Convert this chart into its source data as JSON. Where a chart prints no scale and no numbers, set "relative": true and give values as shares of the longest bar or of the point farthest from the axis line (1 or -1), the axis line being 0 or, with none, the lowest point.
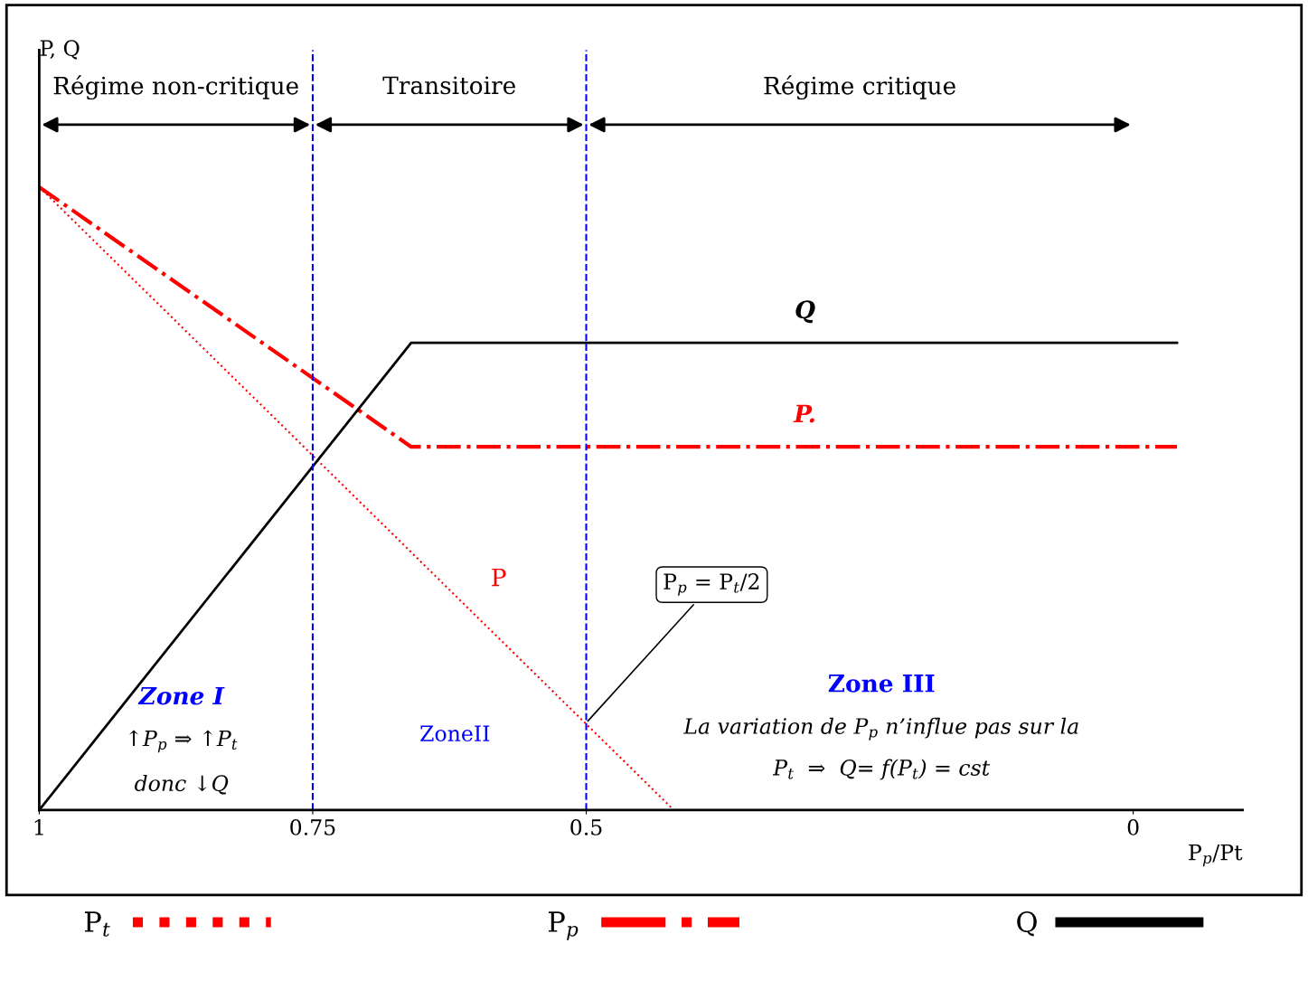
{
  "chart_data": {
    "type": "line",
    "relative": true,
    "xlabel": "P$_{p}$/Pt",
    "x": [
      1,
      0.66,
      -0.04
    ],
    "xlim": [
      1,
      -0.1
    ],
    "xticks": [
      1,
      0.75,
      0.5,
      0
    ],
    "tick_labels": "x",
    "series": [
      {
        "name": "P$_{t}$",
        "color": "#ff0000",
        "line_style": "dotted",
        "x": [
          1,
          0.42
        ],
        "values": [
          1,
          0
        ]
      },
      {
        "name": "P$_{p}$",
        "color": "#ff0000",
        "line_style": "dashdot",
        "values": [
          1,
          0.583,
          0.583
        ]
      },
      {
        "name": "Q",
        "color": "#000000",
        "line_style": "solid",
        "values": [
          0,
          0.75,
          0.75
        ]
      }
    ],
    "ref_lines": [
      {
        "axis": "x",
        "value": 0.75,
        "color": "#0000ff",
        "line_style": "dashed"
      },
      {
        "axis": "x",
        "value": 0.5,
        "color": "#0000ff",
        "line_style": "dashed"
      }
    ],
    "annotations": [
      "Q",
      "P.",
      {
        "text": "P$_{p}$ = P$_{t}$/2",
        "x": 0.5,
        "y": 0.14
      },
      "P, Q",
      "Régime non-critique",
      "Transitoire",
      "Régime critique",
      "P",
      "Zone I",
      "↑P$_{p}$ ⇒ ↑P$_{t}$",
      "donc ↓Q",
      "ZoneII",
      "Zone III",
      "La variation de P$_{p}$ n’influe pas sur la",
      "P$_{t}$  ⇒  Q= f(P$_{t}$) = cst"
    ],
    "legend": "bottom"
  }
}
